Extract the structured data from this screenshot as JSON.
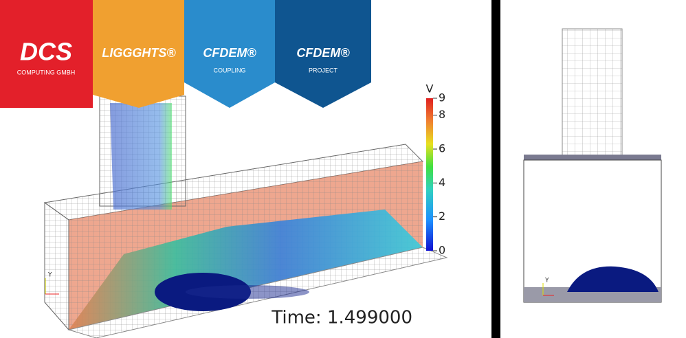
{
  "logos": [
    {
      "name": "DCS",
      "subtitle": "COMPUTING GMBH"
    },
    {
      "name": "LIGGGHTS®"
    },
    {
      "name": "CFDEM®",
      "subtitle": "COUPLING"
    },
    {
      "name": "CFDEM®",
      "subtitle": "PROJECT"
    }
  ],
  "colorbar": {
    "title": "V",
    "range": [
      0,
      9
    ],
    "ticks": [
      0,
      2,
      4,
      6,
      8,
      9
    ]
  },
  "time_label": "Time: 1.499000",
  "left_triad_label": "Y",
  "right_triad_label": "Y"
}
